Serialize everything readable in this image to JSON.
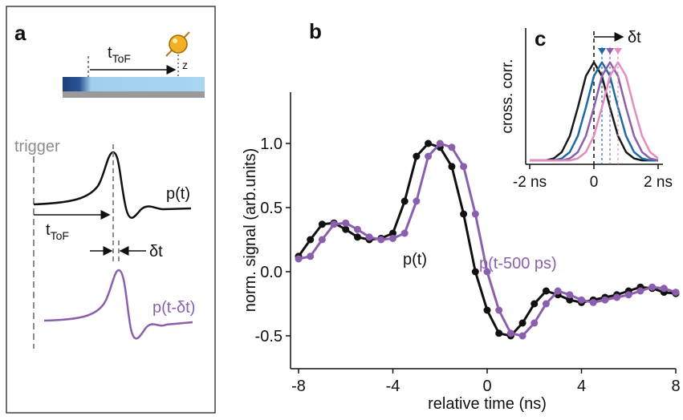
{
  "diagram": {
    "label": "a",
    "tof_top": {
      "main": "t",
      "sub": "ToF"
    },
    "z": "z",
    "trigger": "trigger",
    "pulse_label": "p(t)",
    "tof_bottom": {
      "main": "t",
      "sub": "ToF"
    },
    "delta": "δt",
    "shifted_pulse_label": "p(t-δt)"
  },
  "chart_data": [
    {
      "type": "line",
      "label": "b",
      "xlabel": "relative time (ns)",
      "ylabel": "norm. signal (arb.units)",
      "x": [
        -8,
        -7.5,
        -7,
        -6.5,
        -6,
        -5.5,
        -5,
        -4.5,
        -4,
        -3.5,
        -3,
        -2.5,
        -2,
        -1.5,
        -1,
        -0.5,
        0,
        0.5,
        1,
        1.5,
        2,
        2.5,
        3,
        3.5,
        4,
        4.5,
        5,
        5.5,
        6,
        6.5,
        7,
        7.5,
        8
      ],
      "xlim": [
        -8,
        8
      ],
      "xticks": [
        -8,
        -4,
        0,
        4,
        8
      ],
      "ylim": [
        -0.75,
        1.4
      ],
      "yticks": [
        -0.5,
        {
          "value": 0,
          "label": "0.0"
        },
        0.5,
        {
          "value": 1,
          "label": "1.0"
        }
      ],
      "markers": true,
      "series": [
        {
          "name": "p(t)",
          "color": "#111111",
          "values": [
            0.12,
            0.25,
            0.37,
            0.38,
            0.33,
            0.27,
            0.25,
            0.26,
            0.3,
            0.55,
            0.9,
            1.0,
            0.97,
            0.82,
            0.45,
            0.0,
            -0.3,
            -0.48,
            -0.5,
            -0.4,
            -0.25,
            -0.15,
            -0.18,
            -0.22,
            -0.24,
            -0.22,
            -0.2,
            -0.18,
            -0.15,
            -0.12,
            -0.13,
            -0.16,
            -0.17
          ]
        },
        {
          "name": "p(t-500 ps)",
          "color": "#8b5fad",
          "values": [
            0.1,
            0.12,
            0.25,
            0.37,
            0.38,
            0.33,
            0.27,
            0.25,
            0.26,
            0.3,
            0.55,
            0.9,
            1.0,
            0.97,
            0.82,
            0.45,
            0.0,
            -0.3,
            -0.48,
            -0.5,
            -0.4,
            -0.25,
            -0.15,
            -0.18,
            -0.22,
            -0.24,
            -0.22,
            -0.2,
            -0.18,
            -0.15,
            -0.12,
            -0.13,
            -0.16
          ]
        }
      ]
    },
    {
      "type": "line",
      "label": "c",
      "ylabel": "cross. corr.",
      "annotation": "δt",
      "x": [
        -2,
        -1.75,
        -1.5,
        -1.25,
        -1,
        -0.75,
        -0.5,
        -0.25,
        0,
        0.25,
        0.5,
        0.75,
        1,
        1.25,
        1.5,
        1.75,
        2
      ],
      "xlim": [
        -2.125,
        2.15
      ],
      "xticks": [
        {
          "value": -2,
          "label": "-2 ns"
        },
        0,
        {
          "value": 2,
          "label": "2 ns"
        }
      ],
      "ylim": [
        -0.04,
        1.35
      ],
      "markers": false,
      "series": [
        {
          "color": "#1a1a1a",
          "values": [
            0,
            0,
            0,
            0.02,
            0.085,
            0.25,
            0.54,
            0.86,
            1,
            0.86,
            0.54,
            0.25,
            0.085,
            0.02,
            0,
            0,
            0
          ]
        },
        {
          "color": "#1f6aa5",
          "values": [
            0,
            0,
            0,
            0,
            0.02,
            0.085,
            0.25,
            0.54,
            0.86,
            1,
            0.86,
            0.54,
            0.25,
            0.085,
            0.02,
            0,
            0
          ]
        },
        {
          "color": "#8b5fad",
          "values": [
            0,
            0,
            0,
            0,
            0,
            0.02,
            0.085,
            0.25,
            0.54,
            0.86,
            1,
            0.86,
            0.54,
            0.25,
            0.085,
            0.02,
            0
          ]
        },
        {
          "color": "#e58bbd",
          "values": [
            0,
            0,
            0,
            0,
            0,
            0,
            0.02,
            0.085,
            0.25,
            0.54,
            0.86,
            1,
            0.86,
            0.54,
            0.25,
            0.085,
            0.02
          ]
        }
      ]
    }
  ]
}
